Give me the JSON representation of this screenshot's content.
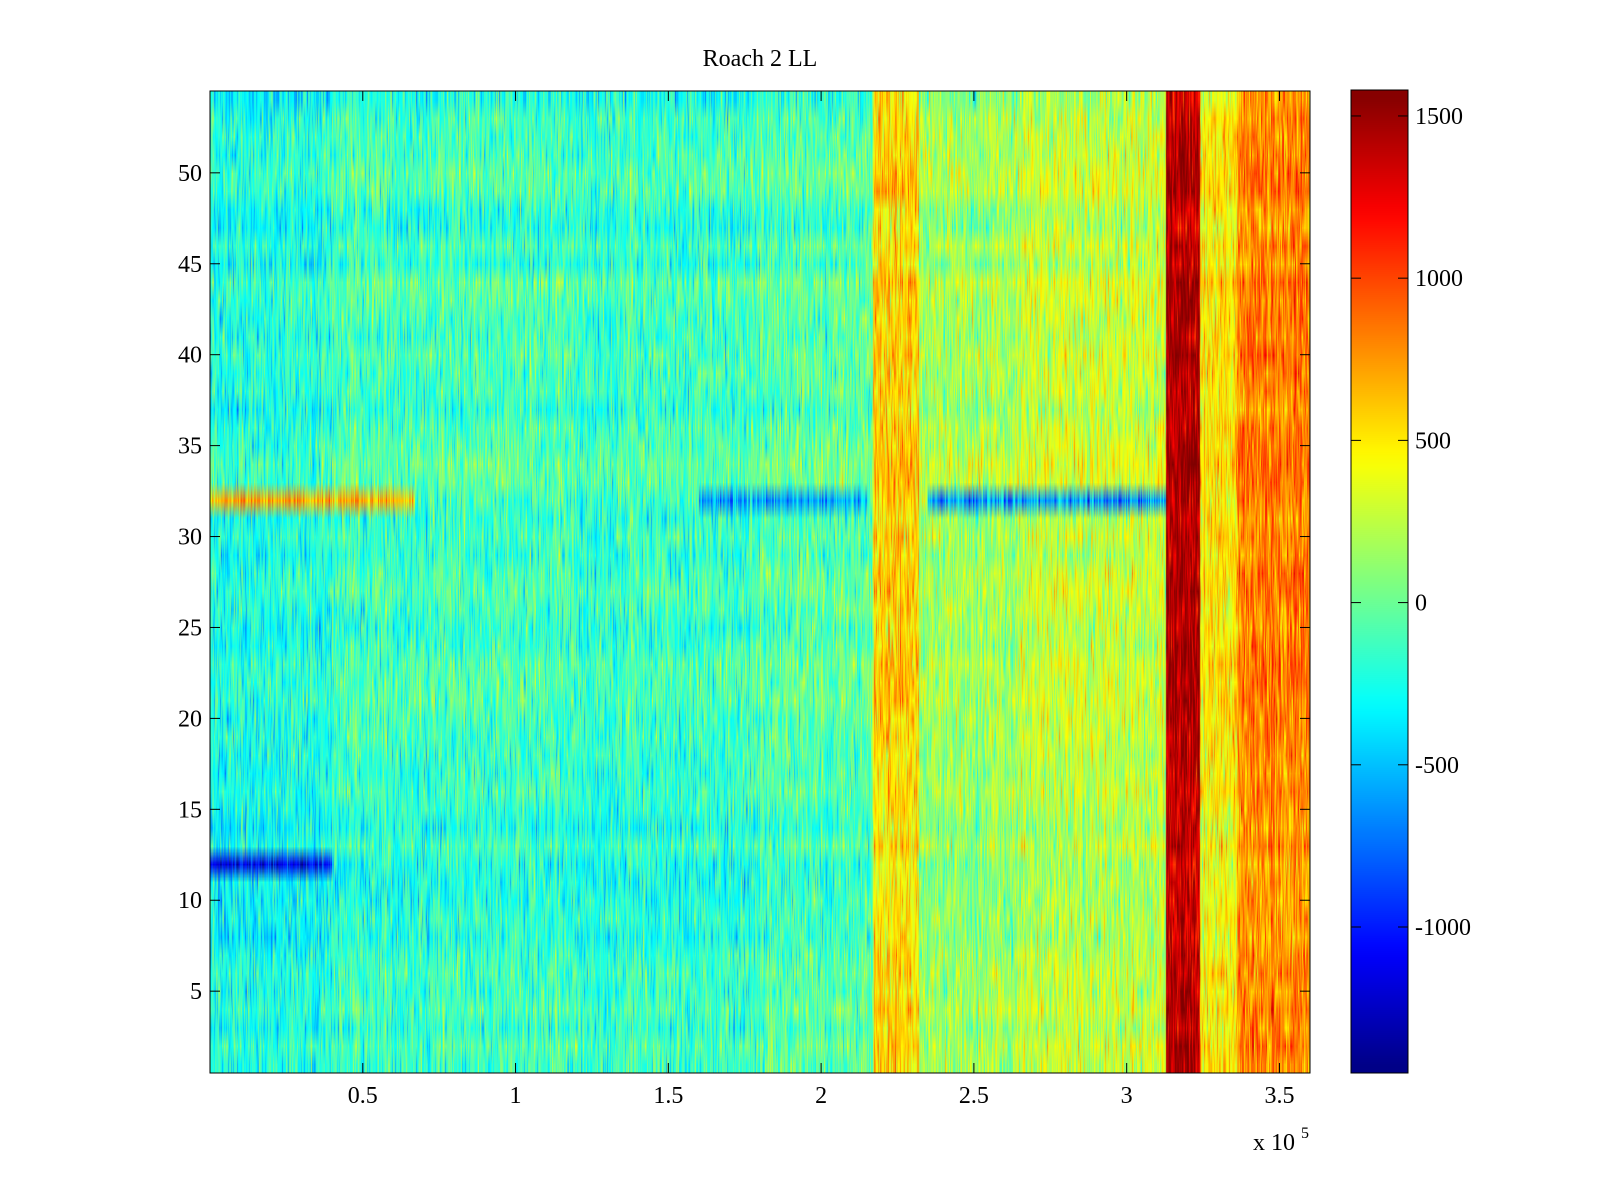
{
  "chart_data": {
    "type": "heatmap",
    "title": "Roach 2 LL",
    "xlabel": "",
    "ylabel": "",
    "x_multiplier_label": "x 10",
    "x_multiplier_exponent": "5",
    "xlim": [
      0,
      360000
    ],
    "ylim": [
      0.5,
      54.5
    ],
    "x_ticks": [
      {
        "value": 50000,
        "label": "0.5"
      },
      {
        "value": 100000,
        "label": "1"
      },
      {
        "value": 150000,
        "label": "1.5"
      },
      {
        "value": 200000,
        "label": "2"
      },
      {
        "value": 250000,
        "label": "2.5"
      },
      {
        "value": 300000,
        "label": "3"
      },
      {
        "value": 350000,
        "label": "3.5"
      }
    ],
    "y_ticks": [
      {
        "value": 5,
        "label": "5"
      },
      {
        "value": 10,
        "label": "10"
      },
      {
        "value": 15,
        "label": "15"
      },
      {
        "value": 20,
        "label": "20"
      },
      {
        "value": 25,
        "label": "25"
      },
      {
        "value": 30,
        "label": "30"
      },
      {
        "value": 35,
        "label": "35"
      },
      {
        "value": 40,
        "label": "40"
      },
      {
        "value": 45,
        "label": "45"
      },
      {
        "value": 50,
        "label": "50"
      }
    ],
    "rows": 54,
    "colormap": "jet",
    "colorbar": {
      "range": [
        -1450,
        1580
      ],
      "ticks": [
        {
          "value": 1500,
          "label": "1500"
        },
        {
          "value": 1000,
          "label": "1000"
        },
        {
          "value": 500,
          "label": "500"
        },
        {
          "value": 0,
          "label": "0"
        },
        {
          "value": -500,
          "label": "-500"
        },
        {
          "value": -1000,
          "label": "-1000"
        }
      ]
    },
    "column_bands": [
      {
        "x_start": 0,
        "x_end": 40000,
        "level": -250
      },
      {
        "x_start": 40000,
        "x_end": 120000,
        "level": -130
      },
      {
        "x_start": 120000,
        "x_end": 180000,
        "level": -160
      },
      {
        "x_start": 180000,
        "x_end": 217000,
        "level": -60
      },
      {
        "x_start": 217000,
        "x_end": 232000,
        "level": 560
      },
      {
        "x_start": 232000,
        "x_end": 265000,
        "level": 160
      },
      {
        "x_start": 265000,
        "x_end": 313000,
        "level": 260
      },
      {
        "x_start": 313000,
        "x_end": 324000,
        "level": 1420
      },
      {
        "x_start": 324000,
        "x_end": 336000,
        "level": 480
      },
      {
        "x_start": 336000,
        "x_end": 360000,
        "level": 800
      }
    ],
    "row_highlights": [
      {
        "row": 12,
        "x_start": 0,
        "x_end": 40000,
        "level": -1000
      },
      {
        "row": 32,
        "x_start": 0,
        "x_end": 67000,
        "level": 650
      },
      {
        "row": 32,
        "x_start": 160000,
        "x_end": 215000,
        "level": -600
      },
      {
        "row": 32,
        "x_start": 235000,
        "x_end": 313000,
        "level": -650
      }
    ]
  }
}
